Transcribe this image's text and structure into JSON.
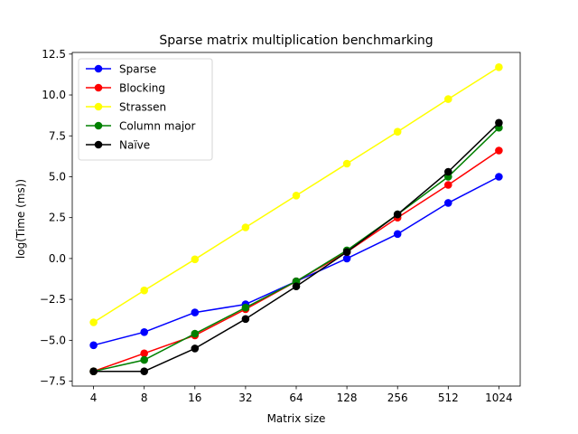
{
  "chart_data": {
    "type": "line",
    "title": "Sparse matrix multiplication benchmarking",
    "xlabel": "Matrix size",
    "ylabel": "log(Time (ms))",
    "categories": [
      "4",
      "8",
      "16",
      "32",
      "64",
      "128",
      "256",
      "512",
      "1024"
    ],
    "ylim": [
      -7.8,
      12.6
    ],
    "yticks": [
      -7.5,
      -5.0,
      -2.5,
      0.0,
      2.5,
      5.0,
      7.5,
      10.0,
      12.5
    ],
    "ytick_labels": [
      "−7.5",
      "−5.0",
      "−2.5",
      "0.0",
      "2.5",
      "5.0",
      "7.5",
      "10.0",
      "12.5"
    ],
    "grid": false,
    "legend_position": "top-left",
    "series": [
      {
        "name": "Sparse",
        "color": "#0000ff",
        "values": [
          -5.3,
          -4.5,
          -3.3,
          -2.8,
          -1.4,
          0.0,
          1.5,
          3.4,
          5.0
        ]
      },
      {
        "name": "Blocking",
        "color": "#ff0000",
        "values": [
          -6.9,
          -5.8,
          -4.7,
          -3.1,
          -1.4,
          0.4,
          2.5,
          4.5,
          6.6
        ]
      },
      {
        "name": "Strassen",
        "color": "#ffff00",
        "values": [
          -3.9,
          -1.95,
          -0.05,
          1.9,
          3.85,
          5.8,
          7.75,
          9.75,
          11.7
        ]
      },
      {
        "name": "Column major",
        "color": "#008000",
        "values": [
          -6.9,
          -6.2,
          -4.6,
          -3.0,
          -1.4,
          0.5,
          2.7,
          5.0,
          8.0
        ]
      },
      {
        "name": "Naïve",
        "color": "#000000",
        "values": [
          -6.9,
          -6.9,
          -5.5,
          -3.7,
          -1.7,
          0.4,
          2.7,
          5.3,
          8.3
        ]
      }
    ]
  }
}
